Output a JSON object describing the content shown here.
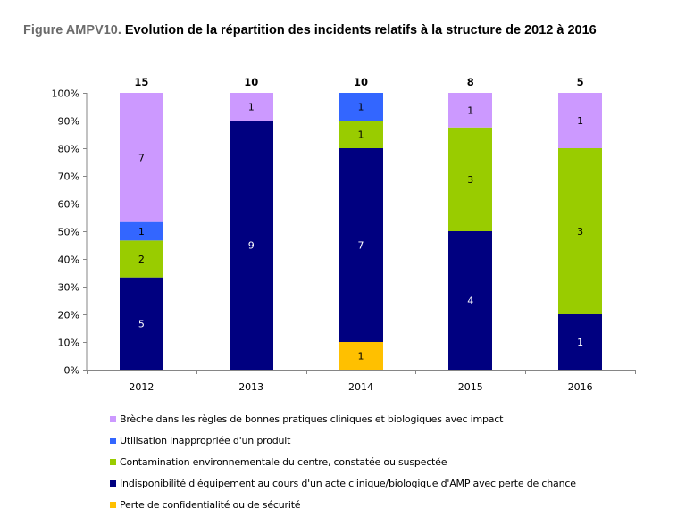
{
  "title": {
    "prefix": "Figure AMPV10.",
    "text": "Evolution de la répartition des incidents relatifs à la structure de 2012 à 2016"
  },
  "chart_data": {
    "type": "bar",
    "stacked": "percent",
    "title": "Figure AMPV10. Evolution de la répartition des incidents relatifs à la structure de 2012 à 2016",
    "xlabel": "",
    "ylabel": "",
    "ylim": [
      0,
      100
    ],
    "yticks": [
      "0%",
      "10%",
      "20%",
      "30%",
      "40%",
      "50%",
      "60%",
      "70%",
      "80%",
      "90%",
      "100%"
    ],
    "grid": false,
    "legend_position": "bottom",
    "categories": [
      "2012",
      "2013",
      "2014",
      "2015",
      "2016"
    ],
    "totals": [
      15,
      10,
      10,
      8,
      5
    ],
    "series": [
      {
        "name": "Perte de confidentialité ou de sécurité",
        "color": "#FFC000",
        "label_color": "#000000",
        "values": [
          0,
          0,
          1,
          0,
          0
        ]
      },
      {
        "name": "Indisponibilité d'équipement au cours d'un acte clinique/biologique d'AMP avec perte de chance",
        "color": "#000080",
        "label_color": "#ffffff",
        "values": [
          5,
          9,
          7,
          4,
          1
        ]
      },
      {
        "name": "Contamination environnementale du centre, constatée ou suspectée",
        "color": "#99CC00",
        "label_color": "#000000",
        "values": [
          2,
          0,
          1,
          3,
          3
        ]
      },
      {
        "name": "Utilisation inappropriée d'un produit",
        "color": "#3366FF",
        "label_color": "#000000",
        "values": [
          1,
          0,
          1,
          0,
          0
        ]
      },
      {
        "name": "Brèche dans les règles de bonnes pratiques cliniques et biologiques avec impact",
        "color": "#CC99FF",
        "label_color": "#000000",
        "values": [
          7,
          1,
          0,
          1,
          1
        ]
      }
    ]
  },
  "legend": {
    "items": [
      {
        "label": "Brèche dans les règles de bonnes pratiques cliniques et biologiques avec impact",
        "color": "#CC99FF"
      },
      {
        "label": "Utilisation inappropriée d'un produit",
        "color": "#3366FF"
      },
      {
        "label": "Contamination environnementale du centre, constatée ou suspectée",
        "color": "#99CC00"
      },
      {
        "label": "Indisponibilité d'équipement au cours d'un acte clinique/biologique d'AMP avec perte de chance",
        "color": "#000080"
      },
      {
        "label": "Perte de confidentialité ou de sécurité",
        "color": "#FFC000"
      }
    ]
  }
}
